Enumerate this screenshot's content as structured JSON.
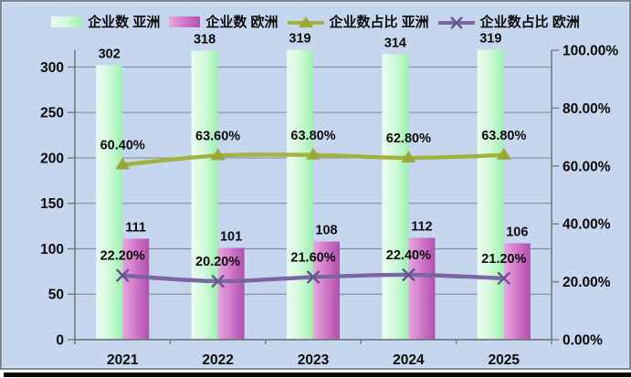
{
  "window": {
    "background_color": "#c6d6ee",
    "frame_border_color": "#7f868f",
    "bottom_bar_color": "#050505",
    "text_color": "#0a0a0a",
    "grid_color": "#8b9097",
    "axis_color": "#75797f"
  },
  "chart_data": {
    "type": "bar",
    "subtype": "combo-bar-line-dual-axis",
    "title": "",
    "xlabel": "",
    "ylabel": "",
    "grid": true,
    "legend_position": "top",
    "categories": [
      "2021",
      "2022",
      "2023",
      "2024",
      "2025"
    ],
    "bar_series": [
      {
        "name": "企业数 亚洲",
        "axis": "left",
        "color_light": "#e9fdef",
        "color_mid": "#d2f8da",
        "color_dark": "#9af2ae",
        "values": [
          302,
          318,
          319,
          314,
          319
        ],
        "labels": [
          "302",
          "318",
          "319",
          "314",
          "319"
        ]
      },
      {
        "name": "企业数 欧洲",
        "axis": "left",
        "color_light": "#e5a8dd",
        "color_mid": "#d077c9",
        "color_dark": "#b04fab",
        "values": [
          111,
          101,
          108,
          112,
          106
        ],
        "labels": [
          "111",
          "101",
          "108",
          "112",
          "106"
        ]
      }
    ],
    "line_series": [
      {
        "name": "企业数占比 亚洲",
        "axis": "right",
        "color": "#a2b23c",
        "marker": "triangle",
        "marker_color": "#9aa936",
        "values": [
          60.4,
          63.6,
          63.8,
          62.8,
          63.8
        ],
        "labels": [
          "60.40%",
          "63.60%",
          "63.80%",
          "62.80%",
          "63.80%"
        ]
      },
      {
        "name": "企业数占比 欧洲",
        "axis": "right",
        "color": "#7b66a3",
        "marker": "x",
        "marker_color": "#65528f",
        "values": [
          22.2,
          20.2,
          21.6,
          22.4,
          21.2
        ],
        "labels": [
          "22.20%",
          "20.20%",
          "21.60%",
          "22.40%",
          "21.20%"
        ]
      }
    ],
    "left_axis": {
      "min": 0,
      "max": 318.5,
      "tick_step": 50,
      "tick_labels": [
        "0",
        "50",
        "100",
        "150",
        "200",
        "250",
        "300"
      ]
    },
    "right_axis": {
      "min": 0,
      "max": 100,
      "tick_step": 20,
      "tick_labels": [
        "0.00%",
        "20.00%",
        "40.00%",
        "60.00%",
        "80.00%",
        "100.00%"
      ]
    }
  }
}
